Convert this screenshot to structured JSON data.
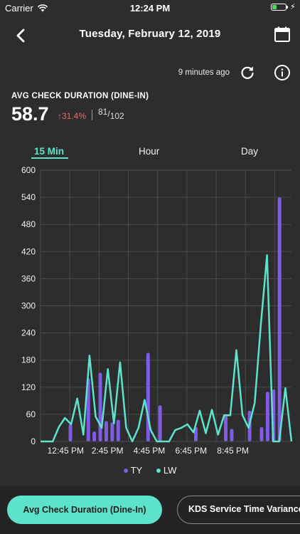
{
  "status_bar": {
    "carrier": "Carrier",
    "time": "12:24 PM",
    "battery_level": 0.35
  },
  "nav": {
    "title": "Tuesday, February 12, 2019"
  },
  "update": {
    "text": "9 minutes ago"
  },
  "metric": {
    "title": "AVG CHECK DURATION (DINE-IN)",
    "value": "58.7",
    "change": "↑31.4%",
    "ratio_num": "81",
    "ratio_den": "102"
  },
  "tabs": {
    "items": [
      "15 Min",
      "Hour",
      "Day"
    ],
    "active": "15 Min"
  },
  "chart_data": {
    "type": "bar+line",
    "y_ticks": [
      "600",
      "540",
      "480",
      "420",
      "360",
      "300",
      "240",
      "180",
      "120",
      "60",
      "0"
    ],
    "ylim": [
      0,
      600
    ],
    "x_tick_labels": [
      "12:45 PM",
      "2:45 PM",
      "4:45 PM",
      "6:45 PM",
      "8:45 PM"
    ],
    "x_slots": 60,
    "series": [
      {
        "name": "TY",
        "type": "bar",
        "color": "#7e5ce6",
        "points": [
          [
            5,
            38
          ],
          [
            8,
            140
          ],
          [
            9,
            22
          ],
          [
            10,
            152
          ],
          [
            11,
            45
          ],
          [
            12,
            42
          ],
          [
            13,
            48
          ],
          [
            18,
            196
          ],
          [
            20,
            80
          ],
          [
            26,
            32
          ],
          [
            31,
            58
          ],
          [
            32,
            28
          ],
          [
            35,
            68
          ],
          [
            37,
            32
          ],
          [
            38,
            110
          ],
          [
            39,
            115
          ],
          [
            40,
            540
          ]
        ]
      },
      {
        "name": "LW",
        "type": "line",
        "color": "#5ee3cb",
        "values": [
          0,
          0,
          0,
          32,
          52,
          38,
          95,
          15,
          190,
          55,
          30,
          160,
          40,
          175,
          30,
          0,
          30,
          92,
          25,
          0,
          0,
          0,
          25,
          30,
          38,
          20,
          68,
          18,
          70,
          15,
          58,
          58,
          202,
          58,
          30,
          85,
          260,
          412,
          0,
          0,
          118,
          0
        ]
      }
    ],
    "grid": true,
    "legend": "bottom-center"
  },
  "bottom_tabs": {
    "items": [
      "Avg Check Duration (Dine-In)",
      "KDS Service Time Variance"
    ],
    "active": "Avg Check Duration (Dine-In)"
  },
  "colors": {
    "accent": "#5ee3cb",
    "bar": "#7e5ce6",
    "negative": "#e96a6a",
    "background": "#2d2d2d"
  }
}
